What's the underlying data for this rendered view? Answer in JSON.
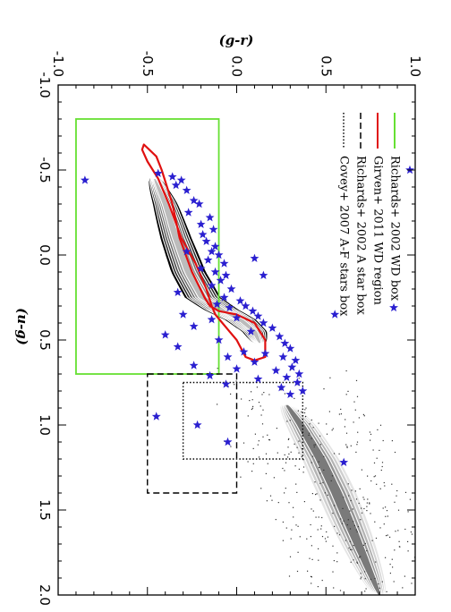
{
  "chart_data": {
    "type": "scatter",
    "orientation": "rotated-90",
    "xlabel": "(u-g)",
    "ylabel": "(g-r)",
    "xlim": [
      -1.0,
      2.0
    ],
    "ylim": [
      -1.0,
      1.0
    ],
    "x_ticks": [
      "-1.0",
      "-0.5",
      "0.0",
      "0.5",
      "1.0",
      "1.5",
      "2.0"
    ],
    "y_ticks": [
      "-1.0",
      "-0.5",
      "0.0",
      "0.5",
      "1.0"
    ],
    "legend_position": "top-right",
    "colors": {
      "richards_wd": "#66e033",
      "girven_wd": "#e01010",
      "stars": "#2a1fd0",
      "boxes": "#000000",
      "density_dark": "#000000",
      "density_light": "#e0e0e0"
    },
    "series": [
      {
        "name": "Richards+ 2002 WD box",
        "kind": "box",
        "u_g": [
          -0.8,
          0.7
        ],
        "g_r": [
          -0.9,
          -0.1
        ],
        "style": "solid",
        "color": "#66e033"
      },
      {
        "name": "Girven+ 2011 WD region",
        "kind": "region",
        "style": "solid",
        "color": "#e01010",
        "u_g": [
          -0.65,
          -0.58,
          -0.5,
          -0.4,
          -0.3,
          -0.1,
          0.1,
          0.25,
          0.3,
          0.33,
          0.35,
          0.4,
          0.5,
          0.6,
          0.62,
          0.6,
          0.5,
          0.4,
          0.35,
          0.3,
          0.2,
          0.05,
          -0.1,
          -0.3,
          -0.45,
          -0.55,
          -0.62,
          -0.65
        ],
        "g_r": [
          -0.52,
          -0.45,
          -0.42,
          -0.39,
          -0.36,
          -0.32,
          -0.25,
          -0.18,
          -0.15,
          -0.1,
          0.0,
          0.1,
          0.16,
          0.16,
          0.1,
          0.05,
          0.0,
          -0.08,
          -0.12,
          -0.14,
          -0.17,
          -0.23,
          -0.31,
          -0.38,
          -0.44,
          -0.5,
          -0.53,
          -0.52
        ]
      },
      {
        "name": "Richards+ 2002 A star box",
        "kind": "box",
        "u_g": [
          0.7,
          1.4
        ],
        "g_r": [
          -0.5,
          0.0
        ],
        "style": "dashed",
        "color": "#000000"
      },
      {
        "name": "Covey+ 2007 A-F stars box",
        "kind": "box",
        "u_g": [
          0.75,
          1.2
        ],
        "g_r": [
          -0.3,
          0.37
        ],
        "style": "dotted",
        "color": "#000000"
      }
    ],
    "wd_density": {
      "levels": 6,
      "spine_u_g": [
        -0.45,
        -0.3,
        -0.1,
        0.1,
        0.25,
        0.32,
        0.38,
        0.45,
        0.52
      ],
      "spine_g_r": [
        -0.46,
        -0.4,
        -0.34,
        -0.27,
        -0.19,
        -0.09,
        0.02,
        0.1,
        0.13
      ],
      "half_width_g_r": 0.1
    },
    "ms_density": {
      "levels": 5,
      "spine_u_g": [
        0.88,
        1.0,
        1.2,
        1.4,
        1.6,
        1.8,
        2.0
      ],
      "spine_g_r": [
        0.28,
        0.36,
        0.47,
        0.56,
        0.64,
        0.72,
        0.8
      ],
      "half_width_g_r": 0.09
    },
    "star_points": [
      [
        -0.48,
        -0.44
      ],
      [
        -0.46,
        -0.36
      ],
      [
        -0.44,
        -0.31
      ],
      [
        -0.44,
        -0.85
      ],
      [
        -0.41,
        -0.34
      ],
      [
        -0.38,
        -0.28
      ],
      [
        -0.32,
        -0.24
      ],
      [
        -0.3,
        -0.21
      ],
      [
        -0.25,
        -0.27
      ],
      [
        -0.22,
        -0.15
      ],
      [
        -0.18,
        -0.2
      ],
      [
        -0.15,
        -0.13
      ],
      [
        -0.12,
        -0.19
      ],
      [
        -0.08,
        -0.17
      ],
      [
        -0.05,
        -0.12
      ],
      [
        -0.02,
        -0.14
      ],
      [
        0.0,
        -0.1
      ],
      [
        0.03,
        -0.16
      ],
      [
        0.05,
        -0.07
      ],
      [
        0.08,
        -0.2
      ],
      [
        0.1,
        -0.12
      ],
      [
        0.12,
        -0.06
      ],
      [
        0.15,
        -0.09
      ],
      [
        0.18,
        -0.14
      ],
      [
        0.2,
        -0.03
      ],
      [
        0.22,
        -0.33
      ],
      [
        0.25,
        -0.07
      ],
      [
        0.27,
        0.02
      ],
      [
        0.29,
        -0.11
      ],
      [
        0.3,
        0.05
      ],
      [
        0.31,
        -0.04
      ],
      [
        0.33,
        0.09
      ],
      [
        0.35,
        -0.3
      ],
      [
        0.36,
        0.12
      ],
      [
        0.37,
        0.0
      ],
      [
        0.38,
        -0.14
      ],
      [
        0.4,
        0.15
      ],
      [
        0.42,
        -0.24
      ],
      [
        0.43,
        0.2
      ],
      [
        0.45,
        0.08
      ],
      [
        0.47,
        -0.4
      ],
      [
        0.48,
        0.24
      ],
      [
        0.5,
        -0.1
      ],
      [
        0.52,
        0.27
      ],
      [
        0.54,
        -0.33
      ],
      [
        0.55,
        0.3
      ],
      [
        0.57,
        0.04
      ],
      [
        0.58,
        0.16
      ],
      [
        0.6,
        -0.05
      ],
      [
        0.6,
        0.26
      ],
      [
        0.62,
        0.33
      ],
      [
        0.63,
        0.1
      ],
      [
        0.65,
        -0.24
      ],
      [
        0.66,
        0.31
      ],
      [
        0.67,
        0.0
      ],
      [
        0.68,
        0.22
      ],
      [
        0.7,
        0.35
      ],
      [
        0.71,
        -0.15
      ],
      [
        0.72,
        0.28
      ],
      [
        0.73,
        0.12
      ],
      [
        0.75,
        0.34
      ],
      [
        0.76,
        -0.06
      ],
      [
        0.78,
        0.25
      ],
      [
        0.8,
        0.37
      ],
      [
        0.82,
        0.3
      ],
      [
        0.95,
        -0.45
      ],
      [
        1.0,
        -0.22
      ],
      [
        1.1,
        -0.05
      ],
      [
        1.22,
        0.6
      ],
      [
        0.35,
        0.55
      ],
      [
        0.31,
        0.88
      ],
      [
        -0.5,
        0.97
      ],
      [
        -0.02,
        -0.28
      ],
      [
        0.12,
        0.15
      ],
      [
        0.02,
        0.1
      ]
    ]
  }
}
